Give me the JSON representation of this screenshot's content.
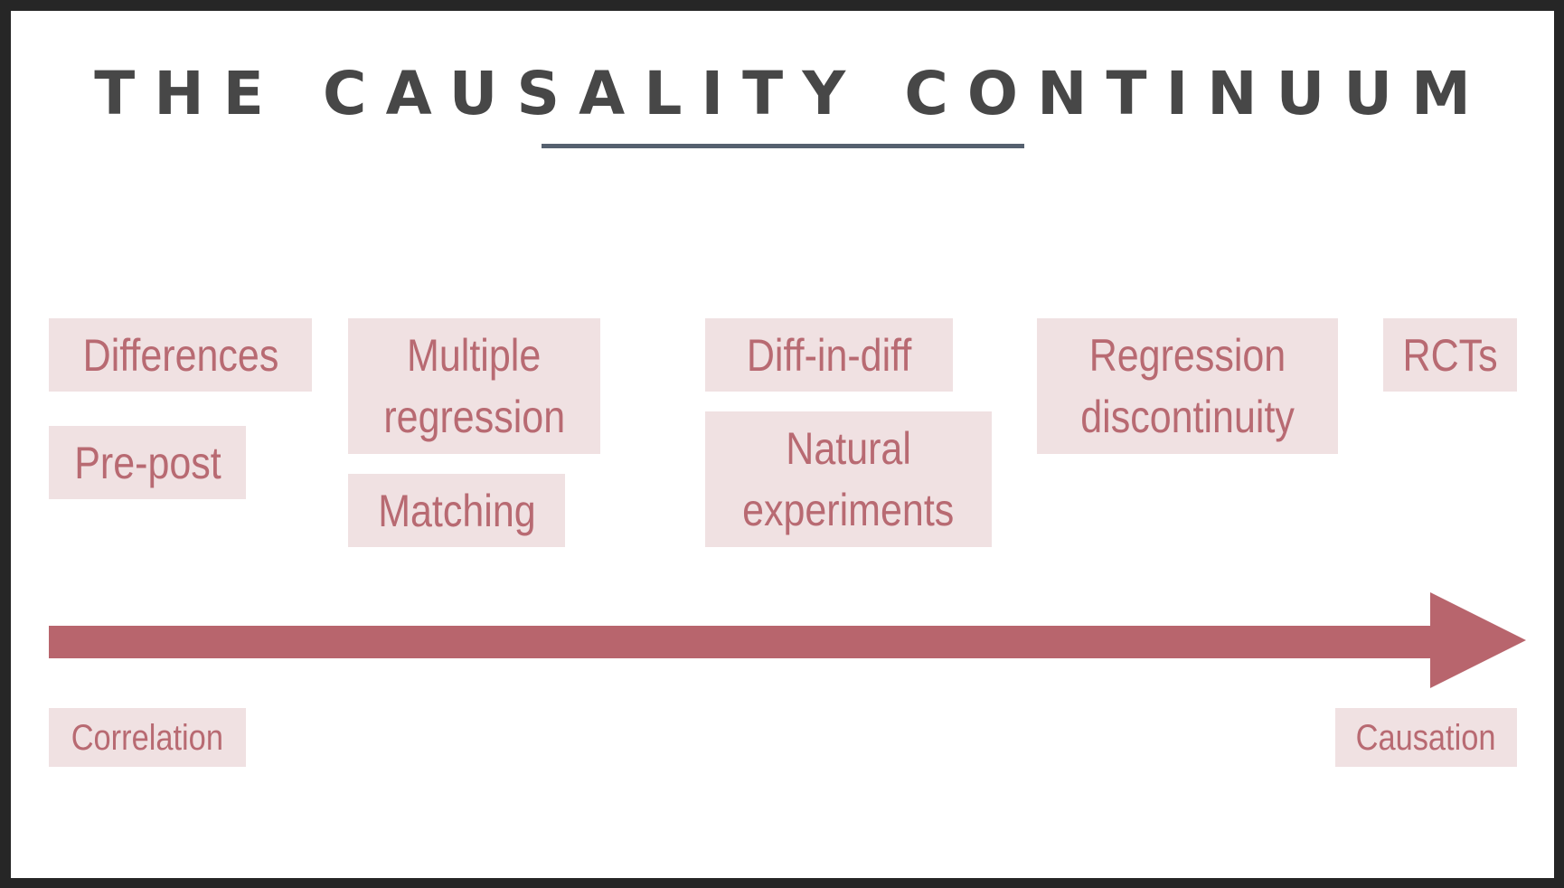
{
  "title": "THE CAUSALITY CONTINUUM",
  "methods": {
    "differences": "Differences",
    "pre_post": "Pre-post",
    "multiple_regression": [
      "Multiple",
      "regression"
    ],
    "matching": "Matching",
    "diff_in_diff": "Diff-in-diff",
    "natural_experiments": [
      "Natural",
      "experiments"
    ],
    "regression_discontinuity": [
      "Regression",
      "discontinuity"
    ],
    "rcts": "RCTs"
  },
  "axis": {
    "start_label": "Correlation",
    "end_label": "Causation",
    "direction": "left-to-right"
  },
  "colors": {
    "accent": "#b8656d",
    "tag_background": "#f0e1e2",
    "tag_text": "#b86a72",
    "title_text": "#474747",
    "title_rule": "#55606f",
    "frame": "#262626"
  }
}
